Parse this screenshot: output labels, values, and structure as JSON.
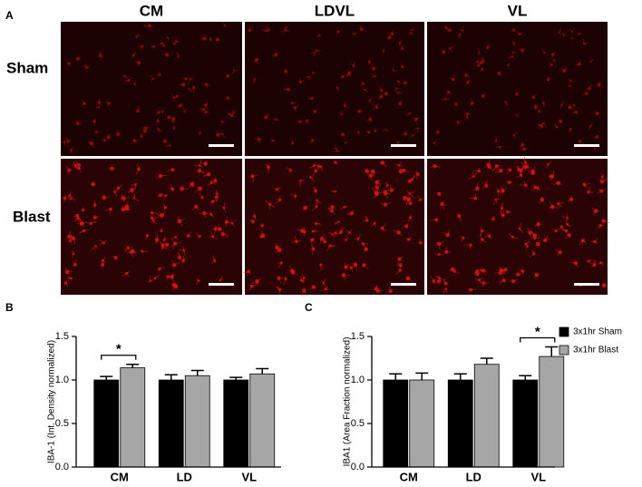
{
  "panel_labels": [
    "A",
    "B",
    "C"
  ],
  "microscopy": {
    "columns": [
      "CM",
      "LDVL",
      "VL"
    ],
    "rows": [
      "Sham",
      "Blast"
    ]
  },
  "chart_data": [
    {
      "type": "bar",
      "ylabel": "IBA-1 (Int. Density normalized)",
      "categories": [
        "CM",
        "LD",
        "VL"
      ],
      "series": [
        {
          "color": "#000000",
          "values": [
            1.0,
            1.0,
            1.0
          ],
          "errors": [
            0.04,
            0.06,
            0.03
          ]
        },
        {
          "color": "#a6a6a6",
          "values": [
            1.14,
            1.05,
            1.07
          ],
          "errors": [
            0.04,
            0.06,
            0.06
          ]
        }
      ],
      "ylim": [
        0,
        1.5
      ],
      "yticks": [
        {
          "value": 0,
          "label": "0.0"
        },
        0.5,
        {
          "value": 1,
          "label": "1.0"
        },
        1.5
      ],
      "annotations": [
        "*"
      ]
    },
    {
      "type": "bar",
      "ylabel": "IBA1 (Area  Fraction normalized)",
      "categories": [
        "CM",
        "LD",
        "VL"
      ],
      "series": [
        {
          "name": "3x1hr Sham",
          "color": "#000000",
          "values": [
            1.0,
            1.0,
            1.0
          ],
          "errors": [
            0.07,
            0.07,
            0.05
          ]
        },
        {
          "name": "3x1hr Blast",
          "color": "#a6a6a6",
          "values": [
            1.0,
            1.18,
            1.27
          ],
          "errors": [
            0.08,
            0.07,
            0.11
          ]
        }
      ],
      "ylim": [
        0,
        1.5
      ],
      "yticks": [
        {
          "value": 0,
          "label": "0.0"
        },
        0.5,
        {
          "value": 1,
          "label": "1.0"
        },
        1.5
      ],
      "legend": "outside right",
      "annotations": [
        "*"
      ]
    }
  ]
}
